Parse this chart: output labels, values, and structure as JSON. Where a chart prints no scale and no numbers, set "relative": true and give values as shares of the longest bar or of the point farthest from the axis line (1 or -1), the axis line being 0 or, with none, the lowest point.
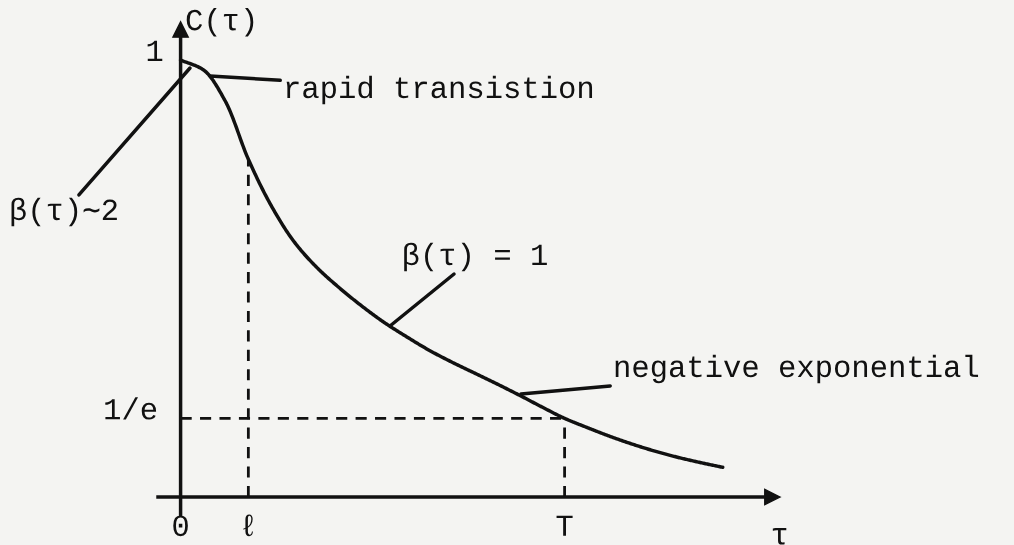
{
  "chart_data": {
    "type": "line",
    "xlabel": "τ",
    "ylabel": "C(τ)",
    "line_style": "solid",
    "relative": true,
    "categories": [
      "0",
      null,
      null,
      "ℓ",
      null,
      null,
      null,
      null,
      null,
      null,
      null,
      null,
      null,
      null,
      null,
      null,
      null,
      "T",
      null,
      null,
      null,
      null,
      null,
      null,
      null
    ],
    "series": [
      {
        "color": "#111111",
        "values": [
          1.0,
          0.978,
          0.904,
          0.773,
          0.668,
          0.586,
          0.527,
          0.48,
          0.438,
          0.4,
          0.367,
          0.336,
          0.309,
          0.284,
          0.259,
          0.233,
          0.206,
          0.18,
          0.159,
          0.139,
          0.121,
          0.105,
          0.091,
          0.079,
          0.068
        ]
      }
    ],
    "ref_lines": [
      {
        "axis": "y",
        "value": 0.18,
        "label": "1/e",
        "line_style": "dashed",
        "color": "#111111"
      },
      {
        "axis": "x",
        "value": "ℓ",
        "line_style": "dashed",
        "color": "#111111"
      },
      {
        "axis": "x",
        "value": "T",
        "line_style": "dashed",
        "color": "#111111"
      }
    ],
    "annotations": [
      {
        "text": "1",
        "x": "0",
        "y": 1
      },
      "rapid transistion",
      "β(τ)∼2",
      "β(τ) = 1",
      "negative exponential"
    ]
  }
}
